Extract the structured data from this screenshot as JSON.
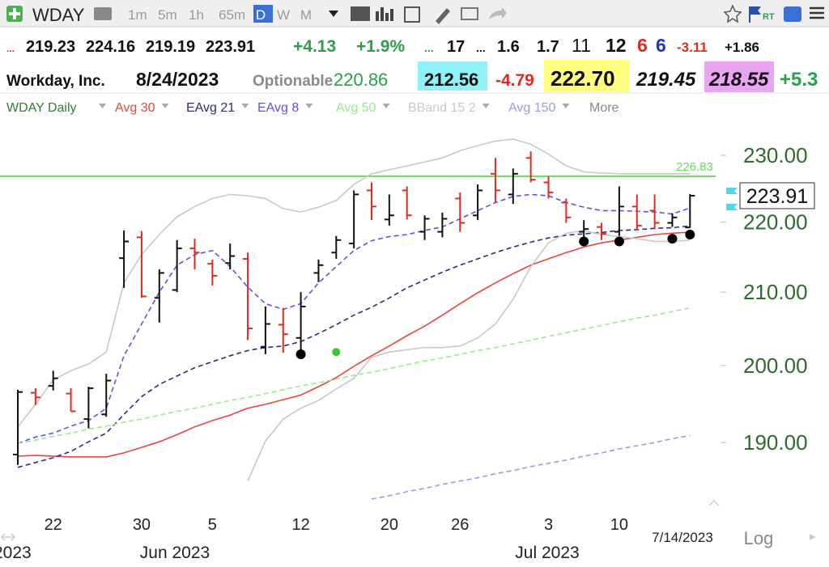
{
  "header": {
    "symbol": "WDAY",
    "intervals": [
      "1m",
      "5m",
      "1h",
      "65m",
      "D",
      "W",
      "M"
    ],
    "quote": [
      "...",
      "219.23",
      "224.16",
      "219.19",
      "223.91",
      "+4.13",
      "+1.9%",
      "...",
      "17",
      "...",
      "1.6",
      "1.7",
      "11",
      "12",
      "6",
      "6",
      "-3.11",
      "+1.86"
    ],
    "info": [
      "Workday, Inc.",
      "8/24/2023",
      "Optionable",
      "220.86",
      "212.56",
      "-4.79",
      "222.70",
      "219.45",
      "218.55",
      "+5.3"
    ],
    "more": "More"
  },
  "chart_data": {
    "type": "ohlc",
    "label": "WDAY Daily",
    "log": true,
    "categories": [
      null,
      null,
      "22",
      null,
      null,
      null,
      null,
      "30",
      null,
      null,
      null,
      "5",
      null,
      null,
      null,
      null,
      "12",
      null,
      null,
      null,
      null,
      "20",
      null,
      null,
      null,
      "26",
      null,
      null,
      null,
      null,
      "3",
      null,
      null,
      null,
      "10",
      null,
      null,
      null,
      null
    ],
    "x_groups": [
      "2023",
      "Jun 2023",
      "Jul 2023"
    ],
    "last_date": "7/14/2023",
    "scale_label": "Log",
    "up_color": "#111111",
    "down_color": "#e8281e",
    "open": [
      188.5,
      196.4,
      197.3,
      196.3,
      193.0,
      193.6,
      214.8,
      217.8,
      209.2,
      210.3,
      216.2,
      214.0,
      214.1,
      214.7,
      202.5,
      205.5,
      203.7,
      212.7,
      215.6,
      216.9,
      224.7,
      220.4,
      224.7,
      218.6,
      218.6,
      223.5,
      221.0,
      227.2,
      224.1,
      229.6,
      225.9,
      222.9,
      218.6,
      219.3,
      218.6,
      222.3,
      221.7,
      219.9,
      219.23
    ],
    "high": [
      196.8,
      197.0,
      199.3,
      197.0,
      197.2,
      198.9,
      218.8,
      218.7,
      213.2,
      217.4,
      217.6,
      214.6,
      216.9,
      215.6,
      208.0,
      207.8,
      210.0,
      214.6,
      218.0,
      224.7,
      225.9,
      224.1,
      225.3,
      221.0,
      221.4,
      224.4,
      225.6,
      229.6,
      228.0,
      230.6,
      226.8,
      223.5,
      220.3,
      219.9,
      225.3,
      224.1,
      224.1,
      221.3,
      224.16
    ],
    "low": [
      187.2,
      194.8,
      196.7,
      194.0,
      191.8,
      193.3,
      210.6,
      209.2,
      205.8,
      210.0,
      213.2,
      210.9,
      213.2,
      203.4,
      201.5,
      201.7,
      201.5,
      211.4,
      214.7,
      216.2,
      220.3,
      219.5,
      220.4,
      217.4,
      217.8,
      218.6,
      220.3,
      222.9,
      222.7,
      225.9,
      223.5,
      219.9,
      217.8,
      217.4,
      218.0,
      219.0,
      219.0,
      219.3,
      219.19
    ],
    "close": [
      196.5,
      195.8,
      198.3,
      194.0,
      197.0,
      198.0,
      217.2,
      209.4,
      212.7,
      216.2,
      215.6,
      212.3,
      215.1,
      205.0,
      205.6,
      204.2,
      208.0,
      213.8,
      217.4,
      224.1,
      222.3,
      221.0,
      221.0,
      220.5,
      220.5,
      219.9,
      224.7,
      224.7,
      227.2,
      226.3,
      224.4,
      220.7,
      219.0,
      218.3,
      222.3,
      219.5,
      219.9,
      220.7,
      223.91
    ],
    "series": [
      {
        "name": "Avg 30",
        "color": "#e8453c",
        "dash": false,
        "values": [
          188.3,
          188.4,
          188.3,
          188.2,
          188.2,
          188.2,
          188.7,
          189.4,
          190.1,
          191.0,
          192.0,
          192.8,
          193.5,
          194.4,
          194.9,
          195.5,
          196.1,
          197.2,
          198.4,
          199.9,
          201.3,
          202.6,
          204.0,
          205.3,
          206.8,
          208.4,
          209.9,
          211.3,
          212.6,
          213.8,
          214.7,
          215.6,
          216.4,
          217.0,
          217.4,
          217.8,
          218.2,
          218.4,
          218.55
        ]
      },
      {
        "name": "EAvg 21",
        "color": "#2a2a8a",
        "dash": true,
        "values": [
          186.9,
          187.5,
          188.1,
          188.9,
          190.1,
          191.2,
          193.6,
          195.9,
          197.5,
          198.6,
          199.7,
          200.5,
          201.3,
          202.0,
          202.4,
          202.6,
          203.2,
          204.3,
          205.5,
          206.8,
          207.9,
          209.2,
          210.6,
          211.7,
          212.8,
          213.8,
          214.7,
          215.6,
          216.4,
          217.1,
          217.7,
          218.1,
          218.3,
          218.5,
          218.8,
          218.9,
          219.1,
          219.2,
          219.45
        ]
      },
      {
        "name": "EAvg 8",
        "color": "#5555ee",
        "dash": true,
        "values": [
          189.9,
          190.7,
          191.2,
          192.1,
          192.8,
          194.4,
          201.3,
          205.6,
          210.0,
          213.8,
          215.3,
          215.9,
          213.6,
          210.7,
          208.4,
          207.6,
          208.4,
          211.3,
          213.6,
          215.9,
          217.3,
          217.9,
          218.2,
          218.8,
          219.3,
          220.5,
          221.7,
          222.9,
          223.8,
          224.1,
          223.9,
          222.9,
          222.2,
          221.7,
          221.7,
          221.6,
          221.5,
          221.2,
          222.1
        ]
      },
      {
        "name": "Avg 50",
        "color": "#9be88e",
        "dash": true,
        "values": [
          189.9,
          190.3,
          190.8,
          191.2,
          191.7,
          192.1,
          192.6,
          193.0,
          193.5,
          194.0,
          194.4,
          194.9,
          195.4,
          195.8,
          196.3,
          196.8,
          197.3,
          197.7,
          198.2,
          198.7,
          199.1,
          199.6,
          200.1,
          200.6,
          201.0,
          201.5,
          202.0,
          202.4,
          202.9,
          203.4,
          203.9,
          204.4,
          204.9,
          205.4,
          205.9,
          206.4,
          206.8,
          207.3,
          207.8
        ]
      },
      {
        "name": "BBand 15 2",
        "color": "#c8c8c8",
        "dash": false,
        "values": [
          192.0,
          194.9,
          198.1,
          199.3,
          200.2,
          201.8,
          211.3,
          215.3,
          218.2,
          220.8,
          222.3,
          223.5,
          224.1,
          223.9,
          223.5,
          222.0,
          221.5,
          222.2,
          223.2,
          225.6,
          227.2,
          227.8,
          228.4,
          229.0,
          229.6,
          230.7,
          231.5,
          232.2,
          232.5,
          231.7,
          230.2,
          228.4,
          227.5,
          227.3,
          227.2,
          227.2,
          227.2,
          227.2,
          227.2
        ],
        "lower": [
          null,
          null,
          null,
          null,
          null,
          null,
          null,
          null,
          null,
          null,
          null,
          null,
          null,
          185.2,
          190.2,
          193.0,
          194.4,
          195.4,
          196.9,
          198.3,
          201.1,
          201.8,
          202.1,
          202.4,
          202.4,
          202.6,
          203.7,
          205.6,
          209.0,
          213.6,
          217.0,
          218.4,
          218.8,
          218.2,
          217.9,
          217.6,
          217.2,
          217.2,
          217.4
        ]
      },
      {
        "name": "Avg 150",
        "color": "#9a9af0",
        "dash": true,
        "values": [
          null,
          null,
          null,
          null,
          null,
          null,
          null,
          null,
          null,
          null,
          null,
          null,
          null,
          null,
          null,
          null,
          null,
          null,
          null,
          null,
          183.0,
          183.4,
          183.9,
          184.3,
          184.8,
          185.2,
          185.6,
          186.1,
          186.5,
          187.0,
          187.4,
          187.8,
          188.3,
          188.7,
          189.2,
          189.6,
          190.0,
          190.5,
          190.9
        ]
      }
    ],
    "signals": {
      "color": "#000000",
      "values": [
        null,
        null,
        null,
        null,
        null,
        null,
        null,
        null,
        null,
        null,
        null,
        null,
        null,
        null,
        null,
        null,
        201.5,
        null,
        null,
        null,
        null,
        null,
        null,
        null,
        null,
        null,
        null,
        null,
        null,
        null,
        null,
        null,
        217.2,
        null,
        217.2,
        null,
        null,
        217.6,
        218.2
      ]
    },
    "alerts": {
      "color": "#33cc33",
      "values": [
        null,
        null,
        null,
        null,
        null,
        null,
        null,
        null,
        null,
        null,
        null,
        null,
        null,
        null,
        null,
        null,
        null,
        null,
        201.8,
        null,
        null,
        null,
        null,
        null,
        null,
        null,
        null,
        null,
        null,
        null,
        null,
        null,
        null,
        null,
        null,
        null,
        null,
        null,
        null
      ]
    },
    "hline": {
      "value": 226.83,
      "color": "#66dd55"
    },
    "ylim": [
      182.7,
      235.9
    ],
    "yticks": [
      {
        "value": 190,
        "label": "190.00"
      },
      {
        "value": 200,
        "label": "200.00"
      },
      {
        "value": 210,
        "label": "210.00"
      },
      {
        "value": 220,
        "label": "220.00"
      },
      {
        "value": 230,
        "label": "230.00"
      }
    ]
  }
}
